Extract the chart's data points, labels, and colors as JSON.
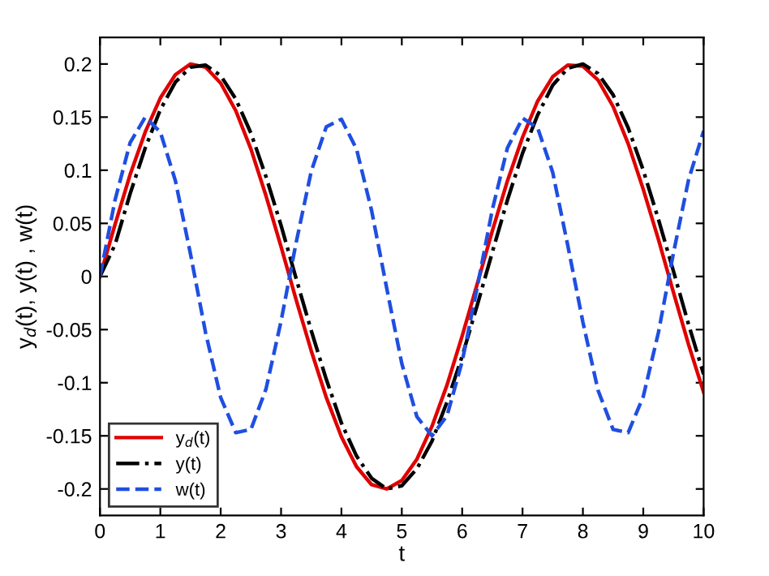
{
  "chart_data": {
    "type": "line",
    "xlabel": "t",
    "ylabel": "y$_{d}$(t), y(t) , w(t)",
    "x": [
      0,
      0.25,
      0.5,
      0.75,
      1,
      1.25,
      1.5,
      1.75,
      2,
      2.25,
      2.5,
      2.75,
      3,
      3.25,
      3.5,
      3.75,
      4,
      4.25,
      4.5,
      4.75,
      5,
      5.25,
      5.5,
      5.75,
      6,
      6.25,
      6.5,
      6.75,
      7,
      7.25,
      7.5,
      7.75,
      8,
      8.25,
      8.5,
      8.75,
      9,
      9.25,
      9.5,
      9.75,
      10
    ],
    "series": [
      {
        "name": "y$_{d}$(t)",
        "color": "#e00000",
        "line_style": "solid",
        "values": [
          0,
          0.049,
          0.096,
          0.136,
          0.168,
          0.19,
          0.2,
          0.197,
          0.182,
          0.156,
          0.12,
          0.076,
          0.028,
          -0.022,
          -0.07,
          -0.114,
          -0.151,
          -0.179,
          -0.196,
          -0.2,
          -0.192,
          -0.172,
          -0.141,
          -0.102,
          -0.056,
          -0.007,
          0.043,
          0.09,
          0.131,
          0.165,
          0.188,
          0.199,
          0.198,
          0.185,
          0.16,
          0.125,
          0.082,
          0.035,
          -0.015,
          -0.064,
          -0.109
        ]
      },
      {
        "name": "y(t)",
        "color": "#000000",
        "line_style": "dashdot",
        "values": [
          0,
          0.03,
          0.078,
          0.121,
          0.157,
          0.183,
          0.197,
          0.199,
          0.189,
          0.167,
          0.135,
          0.094,
          0.048,
          -0.002,
          -0.051,
          -0.097,
          -0.138,
          -0.169,
          -0.19,
          -0.2,
          -0.197,
          -0.181,
          -0.155,
          -0.118,
          -0.075,
          -0.027,
          0.023,
          0.072,
          0.116,
          0.152,
          0.18,
          0.196,
          0.2,
          0.191,
          0.171,
          0.14,
          0.1,
          0.054,
          0.005,
          -0.045,
          -0.092
        ]
      },
      {
        "name": "w(t)",
        "color": "#1f4fe0",
        "line_style": "dashed",
        "values": [
          0,
          0.072,
          0.126,
          0.15,
          0.136,
          0.09,
          0.021,
          -0.053,
          -0.114,
          -0.147,
          -0.144,
          -0.106,
          -0.042,
          0.032,
          0.099,
          0.141,
          0.148,
          0.12,
          0.062,
          -0.011,
          -0.082,
          -0.132,
          -0.15,
          -0.131,
          -0.08,
          -0.01,
          0.063,
          0.121,
          0.149,
          0.14,
          0.098,
          0.029,
          -0.043,
          -0.107,
          -0.144,
          -0.147,
          -0.113,
          -0.053,
          0.022,
          0.091,
          0.137
        ]
      }
    ],
    "xlim": [
      0,
      10
    ],
    "xticks": [
      0,
      1,
      2,
      3,
      4,
      5,
      6,
      7,
      8,
      9,
      10
    ],
    "ylim": [
      -0.225,
      0.225
    ],
    "yticks": [
      -0.2,
      -0.15,
      -0.1,
      -0.05,
      0,
      0.05,
      0.1,
      0.15,
      0.2
    ],
    "grid": false,
    "legend": "bottom left",
    "marker": "none"
  }
}
